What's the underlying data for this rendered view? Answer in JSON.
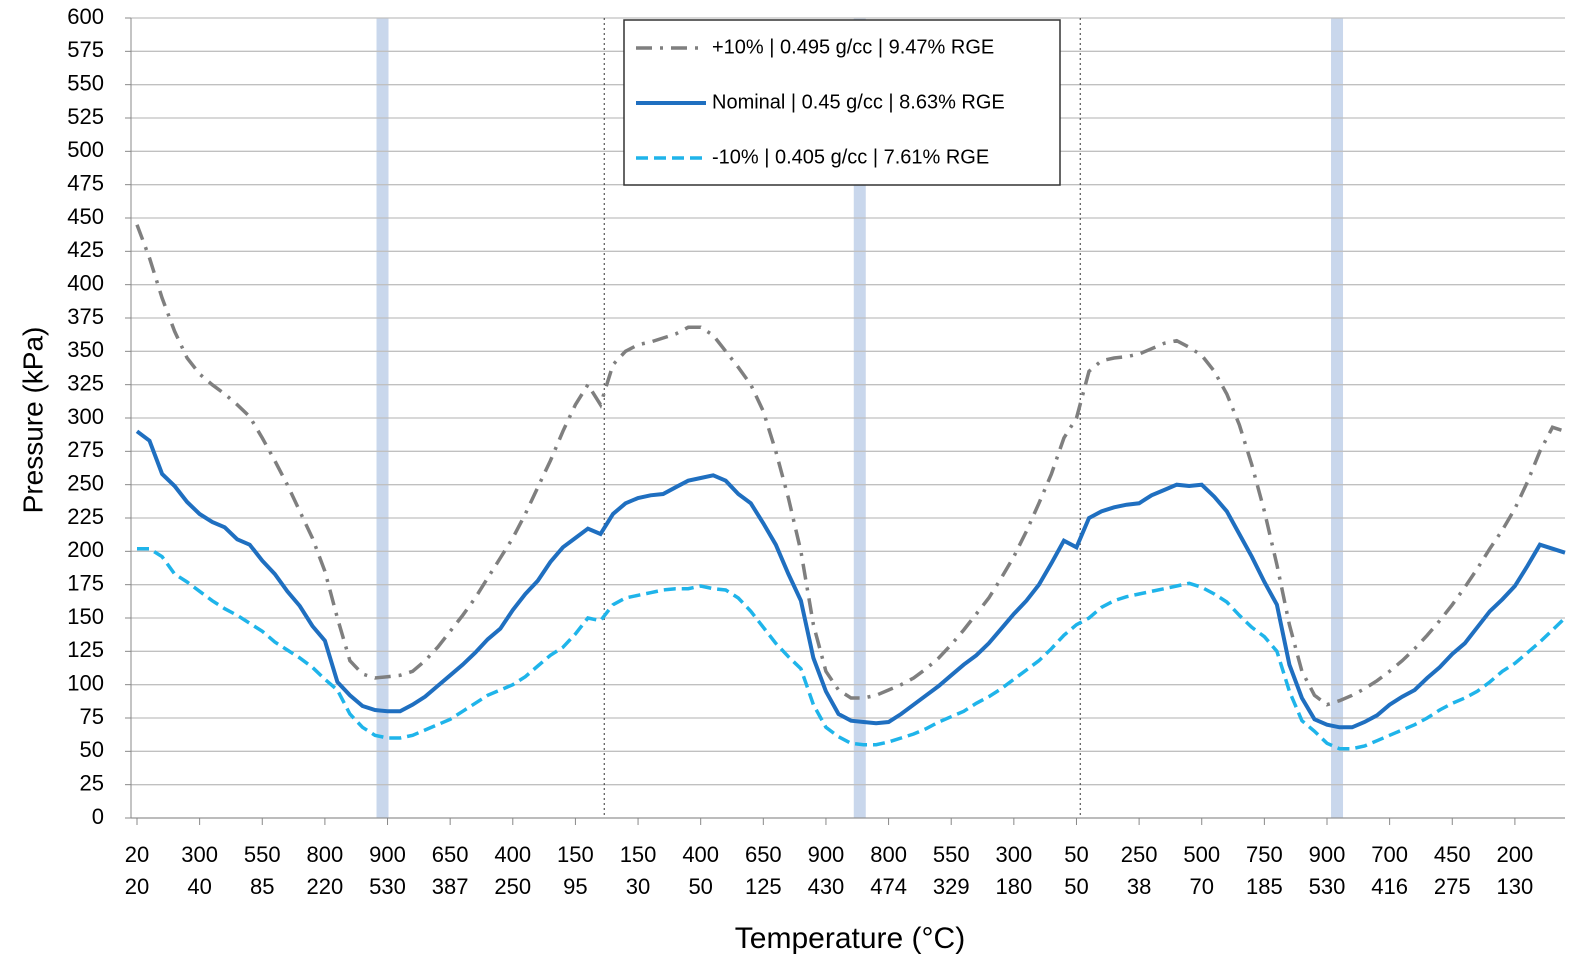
{
  "chart_data": {
    "type": "line",
    "x_label": "Temperature (°C)",
    "y_label": "Pressure (kPa)",
    "categories": [
      [
        "20",
        "20"
      ],
      null,
      null,
      null,
      null,
      [
        "300",
        "40"
      ],
      null,
      null,
      null,
      null,
      [
        "550",
        "85"
      ],
      null,
      null,
      null,
      null,
      [
        "800",
        "220"
      ],
      null,
      null,
      null,
      null,
      [
        "900",
        "530"
      ],
      null,
      null,
      null,
      null,
      [
        "650",
        "387"
      ],
      null,
      null,
      null,
      null,
      [
        "400",
        "250"
      ],
      null,
      null,
      null,
      null,
      [
        "150",
        "95"
      ],
      null,
      null,
      null,
      null,
      [
        "150",
        "30"
      ],
      null,
      null,
      null,
      null,
      [
        "400",
        "50"
      ],
      null,
      null,
      null,
      null,
      [
        "650",
        "125"
      ],
      null,
      null,
      null,
      null,
      [
        "900",
        "430"
      ],
      null,
      null,
      null,
      null,
      [
        "800",
        "474"
      ],
      null,
      null,
      null,
      null,
      [
        "550",
        "329"
      ],
      null,
      null,
      null,
      null,
      [
        "300",
        "180"
      ],
      null,
      null,
      null,
      null,
      [
        "50",
        "50"
      ],
      null,
      null,
      null,
      null,
      [
        "250",
        "38"
      ],
      null,
      null,
      null,
      null,
      [
        "500",
        "70"
      ],
      null,
      null,
      null,
      null,
      [
        "750",
        "185"
      ],
      null,
      null,
      null,
      null,
      [
        "900",
        "530"
      ],
      null,
      null,
      null,
      null,
      [
        "700",
        "416"
      ],
      null,
      null,
      null,
      null,
      [
        "450",
        "275"
      ],
      null,
      null,
      null,
      null,
      [
        "200",
        "130"
      ],
      null,
      null,
      null,
      null
    ],
    "series": [
      {
        "name": "+10% | 0.495 g/cc | 9.47% RGE",
        "color": "#7f7f7f",
        "style": "dashdot",
        "values": [
          445,
          420,
          390,
          365,
          345,
          333,
          325,
          318,
          310,
          301,
          285,
          268,
          250,
          230,
          210,
          185,
          150,
          118,
          108,
          105,
          106,
          107,
          110,
          118,
          128,
          140,
          152,
          165,
          180,
          195,
          210,
          228,
          248,
          268,
          290,
          310,
          325,
          310,
          340,
          350,
          355,
          357,
          360,
          363,
          368,
          368,
          362,
          350,
          338,
          325,
          305,
          275,
          240,
          200,
          145,
          110,
          96,
          90,
          90,
          92,
          96,
          100,
          105,
          112,
          120,
          130,
          141,
          153,
          165,
          180,
          196,
          215,
          236,
          258,
          285,
          300,
          335,
          343,
          345,
          346,
          348,
          352,
          356,
          358,
          353,
          347,
          335,
          318,
          295,
          265,
          230,
          190,
          145,
          110,
          92,
          85,
          88,
          92,
          97,
          103,
          110,
          118,
          127,
          137,
          148,
          160,
          173,
          187,
          202,
          216,
          232,
          252,
          275,
          293,
          290
        ]
      },
      {
        "name": "Nominal | 0.45 g/cc | 8.63% RGE",
        "color": "#1f6fc0",
        "style": "solid",
        "values": [
          290,
          283,
          258,
          249,
          237,
          228,
          222,
          218,
          209,
          205,
          193,
          183,
          170,
          159,
          144,
          133,
          102,
          92,
          84,
          81,
          80,
          80,
          85,
          91,
          99,
          107,
          115,
          124,
          134,
          142,
          156,
          168,
          178,
          192,
          203,
          210,
          217,
          213,
          228,
          236,
          240,
          242,
          243,
          248,
          253,
          255,
          257,
          253,
          243,
          236,
          221,
          205,
          183,
          163,
          120,
          95,
          78,
          73,
          72,
          71,
          72,
          78,
          85,
          92,
          99,
          107,
          115,
          122,
          131,
          142,
          153,
          163,
          175,
          191,
          208,
          203,
          225,
          230,
          233,
          235,
          236,
          242,
          246,
          250,
          249,
          250,
          241,
          230,
          213,
          196,
          177,
          160,
          115,
          90,
          74,
          70,
          68,
          68,
          72,
          77,
          85,
          91,
          96,
          105,
          113,
          123,
          131,
          143,
          155,
          164,
          174,
          189,
          205,
          202,
          199
        ]
      },
      {
        "name": "-10% | 0.405 g/cc | 7.61% RGE",
        "color": "#1fb4ea",
        "style": "dashed",
        "values": [
          202,
          202,
          196,
          183,
          177,
          170,
          163,
          157,
          152,
          146,
          140,
          132,
          126,
          120,
          113,
          104,
          96,
          78,
          68,
          62,
          60,
          60,
          62,
          66,
          70,
          74,
          80,
          86,
          92,
          96,
          100,
          106,
          114,
          122,
          128,
          138,
          150,
          148,
          160,
          165,
          167,
          169,
          171,
          172,
          172,
          174,
          172,
          171,
          165,
          155,
          143,
          131,
          121,
          112,
          85,
          68,
          61,
          56,
          55,
          55,
          57,
          60,
          63,
          67,
          72,
          76,
          80,
          86,
          91,
          97,
          104,
          111,
          118,
          127,
          137,
          145,
          150,
          158,
          163,
          166,
          168,
          170,
          172,
          174,
          176,
          173,
          168,
          162,
          152,
          143,
          136,
          125,
          95,
          73,
          65,
          56,
          52,
          52,
          54,
          58,
          62,
          66,
          70,
          75,
          81,
          86,
          90,
          95,
          102,
          110,
          116,
          124,
          132,
          141,
          150
        ]
      }
    ],
    "ylim": [
      0,
      600
    ],
    "yticks": [
      0,
      25,
      50,
      75,
      100,
      125,
      150,
      175,
      200,
      225,
      250,
      275,
      300,
      325,
      350,
      375,
      400,
      425,
      450,
      475,
      500,
      525,
      550,
      575,
      600
    ],
    "grid": true,
    "legend": "top"
  }
}
